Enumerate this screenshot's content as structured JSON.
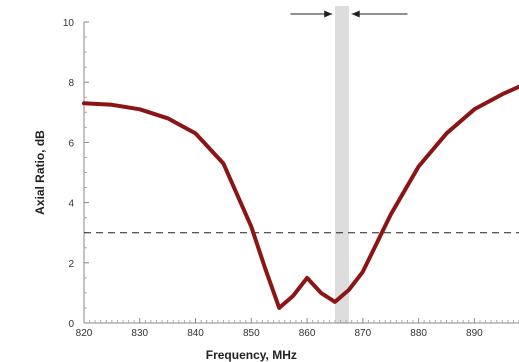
{
  "chart_data": {
    "type": "line",
    "title": "",
    "xlabel": "Frequency, MHz",
    "ylabel": "Axial Ratio, dB",
    "xlim": [
      820,
      898
    ],
    "ylim": [
      0,
      10
    ],
    "x_ticks": [
      820,
      830,
      840,
      850,
      860,
      870,
      880,
      890
    ],
    "y_ticks": [
      0,
      2,
      4,
      6,
      8,
      10
    ],
    "grid": false,
    "legend": "none",
    "series": [
      {
        "color": "#8b1414",
        "x": [
          820,
          825,
          830,
          835,
          840,
          845,
          850,
          852.5,
          855,
          857.5,
          860,
          862.5,
          865,
          867.5,
          870,
          875,
          880,
          885,
          890,
          895,
          898
        ],
        "y": [
          7.3,
          7.25,
          7.1,
          6.8,
          6.3,
          5.3,
          3.2,
          1.8,
          0.5,
          0.9,
          1.5,
          1.0,
          0.7,
          1.1,
          1.7,
          3.6,
          5.2,
          6.3,
          7.1,
          7.6,
          7.85
        ]
      }
    ],
    "reference_line": {
      "y": 3,
      "style": "dashed",
      "color": "#222222"
    },
    "highlight_band": {
      "x_start": 865,
      "x_end": 867.5,
      "color": "#dddddd"
    },
    "arrows": [
      {
        "from_x": 857,
        "to_x": 864.5,
        "y": 10.3
      },
      {
        "from_x": 878,
        "to_x": 868,
        "y": 10.3
      }
    ]
  }
}
